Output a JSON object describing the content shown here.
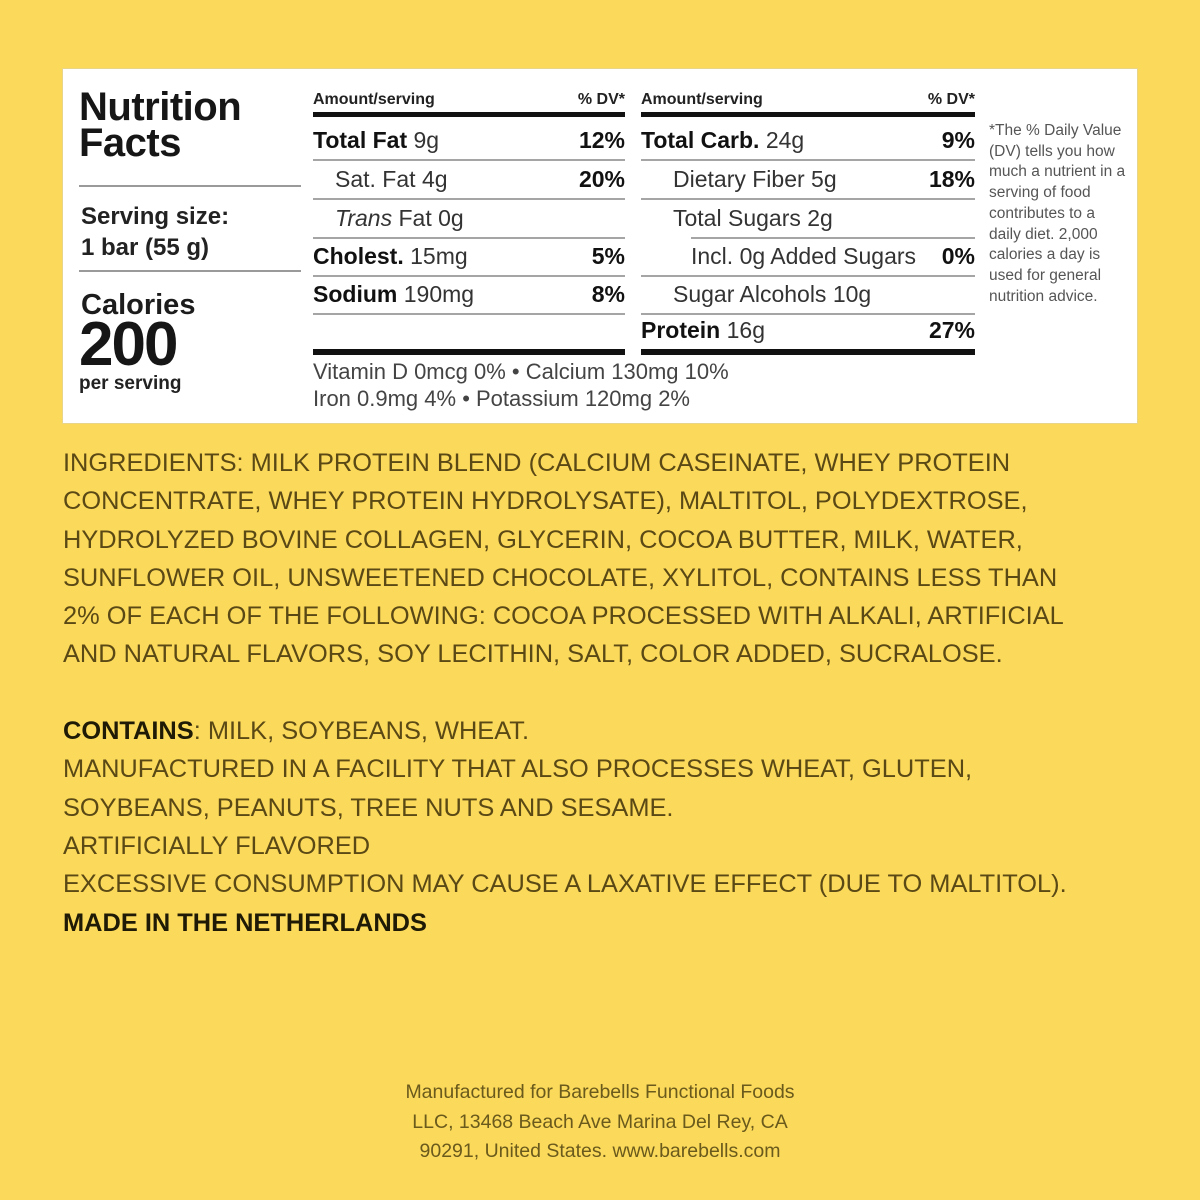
{
  "nutrition": {
    "title_line1": "Nutrition",
    "title_line2": "Facts",
    "serving_label": "Serving size:",
    "serving_value": "1 bar (55 g)",
    "calories_label": "Calories",
    "calories_value": "200",
    "per_serving": "per serving",
    "header_amount": "Amount/serving",
    "header_dv": "% DV*",
    "left_rows": [
      {
        "name": "Total Fat",
        "amount": "9g",
        "dv": "12%"
      },
      {
        "name": "Sat. Fat",
        "amount": "4g",
        "dv": "20%"
      },
      {
        "name_italic": "Trans",
        "name": "Fat",
        "amount": "0g",
        "dv": ""
      },
      {
        "name": "Cholest.",
        "amount": "15mg",
        "dv": "5%"
      },
      {
        "name": "Sodium",
        "amount": "190mg",
        "dv": "8%"
      }
    ],
    "right_rows": [
      {
        "name": "Total Carb.",
        "amount": "24g",
        "dv": "9%"
      },
      {
        "name": "Dietary Fiber",
        "amount": "5g",
        "dv": "18%"
      },
      {
        "name": "Total Sugars",
        "amount": "2g",
        "dv": ""
      },
      {
        "name": "Incl. 0g Added Sugars",
        "amount": "",
        "dv": "0%"
      },
      {
        "name": "Sugar Alcohols",
        "amount": "10g",
        "dv": ""
      },
      {
        "name": "Protein",
        "amount": "16g",
        "dv": "27%"
      }
    ],
    "vitamins_line1": "Vitamin D 0mcg 0%  •  Calcium 130mg 10%",
    "vitamins_line2": "Iron 0.9mg 4%  •  Potassium 120mg 2%",
    "footnote": "*The % Daily Value (DV) tells you how much a nutrient in a serving of food contributes to a daily diet. 2,000 calories a day is used for general nutrition advice."
  },
  "ingredients_lines": [
    "INGREDIENTS: MILK PROTEIN BLEND (CALCIUM CASEINATE, WHEY PROTEIN",
    "CONCENTRATE, WHEY PROTEIN HYDROLYSATE), MALTITOL, POLYDEXTROSE,",
    "HYDROLYZED BOVINE COLLAGEN, GLYCERIN, COCOA BUTTER, MILK, WATER,",
    "SUNFLOWER OIL, UNSWEETENED CHOCOLATE, XYLITOL, CONTAINS LESS THAN",
    "2% OF EACH OF THE FOLLOWING: COCOA PROCESSED WITH ALKALI, ARTIFICIAL",
    "AND NATURAL FLAVORS, SOY LECITHIN, SALT, COLOR ADDED, SUCRALOSE."
  ],
  "allergens": {
    "contains_label": "CONTAINS",
    "contains_value": ": MILK, SOYBEANS, WHEAT.",
    "facility_line1": "MANUFACTURED IN A FACILITY THAT ALSO PROCESSES WHEAT, GLUTEN,",
    "facility_line2": "SOYBEANS, PEANUTS, TREE NUTS AND SESAME.",
    "flavored": "ARTIFICIALLY FLAVORED",
    "warning": "EXCESSIVE CONSUMPTION MAY CAUSE A LAXATIVE EFFECT (DUE TO MALTITOL).",
    "origin": "MADE IN THE NETHERLANDS"
  },
  "manufacturer": {
    "line1": "Manufactured for Barebells Functional Foods",
    "line2": "LLC, 13468 Beach Ave Marina Del Rey, CA",
    "line3": "90291, United States. www.barebells.com"
  },
  "colors": {
    "background": "#fbd95b",
    "text": "#5a4915",
    "panel": "#ffffff"
  }
}
